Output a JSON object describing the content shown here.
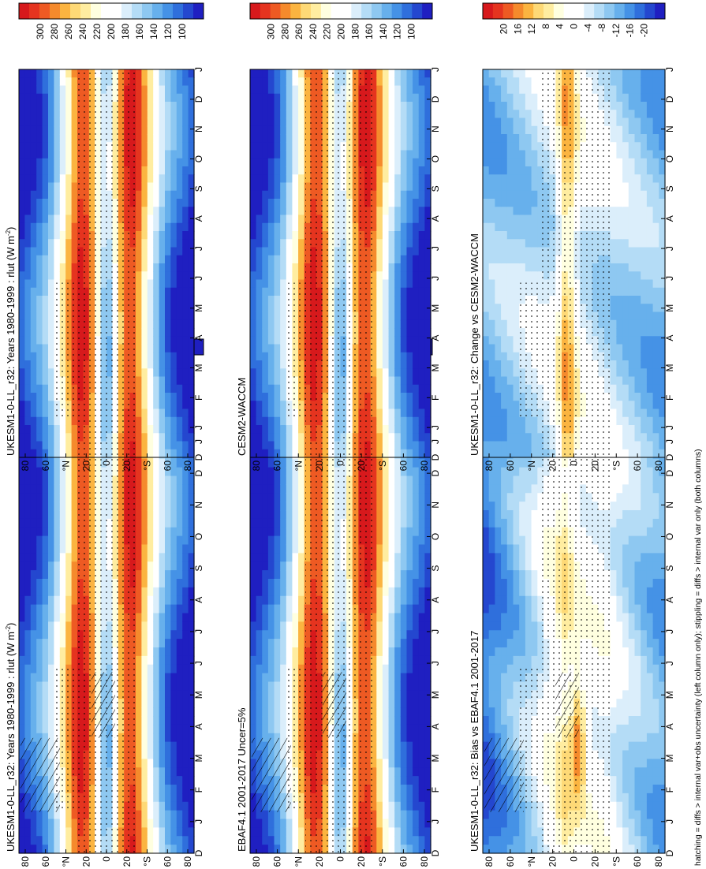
{
  "figure": {
    "footnote": "hatching = diffs > internal var+obs uncertainty (left column only); stippling = diffs > internal var only (both columns)"
  },
  "chart_data": [
    {
      "type": "heatmap",
      "id": "ukesm-left",
      "title": "UKESM1-0-LL_r32: Years 1980-1999 : rlut (W m",
      "title_sup": "-2",
      "title_end": ")",
      "x_ticks": [
        "D",
        "J",
        "F",
        "M",
        "A",
        "M",
        "J",
        "J",
        "A",
        "S",
        "O",
        "N",
        "D",
        "J"
      ],
      "y_ticks": [
        "80",
        "60",
        "°N",
        "20",
        "0",
        "20",
        "°S",
        "60",
        "80"
      ],
      "colorbar": {
        "levels": [
          "300",
          "280",
          "260",
          "240",
          "220",
          "200",
          "180",
          "160",
          "140",
          "120",
          "100"
        ],
        "colors": [
          "#d7191c",
          "#e5341f",
          "#ee5a23",
          "#f58a2c",
          "#fbb440",
          "#fed976",
          "#ffeda0",
          "#ffffe0",
          "#ffffff",
          "#ffffff",
          "#dbeefb",
          "#b4dcf6",
          "#8ec8f1",
          "#67b0ec",
          "#4592e6",
          "#2f6fdc",
          "#2447cf",
          "#1f1fc1"
        ]
      },
      "kind": "abs",
      "stipple": true,
      "hatch": true
    },
    {
      "type": "heatmap",
      "id": "ukesm-right",
      "title": "UKESM1-0-LL_r32: Years 1980-1999 : rlut (W m",
      "title_sup": "-2",
      "title_end": ")",
      "x_ticks": [
        "D",
        "J",
        "F",
        "M",
        "A",
        "M",
        "J",
        "J",
        "A",
        "S",
        "O",
        "N",
        "D",
        "J"
      ],
      "y_ticks": [
        "80",
        "60",
        "°N",
        "20",
        "0",
        "20",
        "°S",
        "60",
        "80"
      ],
      "colorbar": {
        "levels": [
          "300",
          "280",
          "260",
          "240",
          "220",
          "200",
          "180",
          "160",
          "140",
          "120",
          "100"
        ],
        "colors": [
          "#d7191c",
          "#e5341f",
          "#ee5a23",
          "#f58a2c",
          "#fbb440",
          "#fed976",
          "#ffeda0",
          "#ffffe0",
          "#ffffff",
          "#ffffff",
          "#dbeefb",
          "#b4dcf6",
          "#8ec8f1",
          "#67b0ec",
          "#4592e6",
          "#2f6fdc",
          "#2447cf",
          "#1f1fc1"
        ]
      },
      "kind": "abs",
      "stipple": true,
      "hatch": false
    },
    {
      "type": "heatmap",
      "id": "ebaf",
      "title": "EBAF4.1 2001-2017 Uncer=5%",
      "title_sup": "",
      "title_end": "",
      "x_ticks": [
        "D",
        "J",
        "F",
        "M",
        "A",
        "M",
        "J",
        "J",
        "A",
        "S",
        "O",
        "N",
        "D",
        "J"
      ],
      "y_ticks": [
        "80",
        "60",
        "°N",
        "20",
        "0",
        "20",
        "°S",
        "60",
        "80"
      ],
      "colorbar": {
        "levels": [
          "300",
          "280",
          "260",
          "240",
          "220",
          "200",
          "180",
          "160",
          "140",
          "120",
          "100"
        ],
        "colors": [
          "#d7191c",
          "#e5341f",
          "#ee5a23",
          "#f58a2c",
          "#fbb440",
          "#fed976",
          "#ffeda0",
          "#ffffe0",
          "#ffffff",
          "#ffffff",
          "#dbeefb",
          "#b4dcf6",
          "#8ec8f1",
          "#67b0ec",
          "#4592e6",
          "#2f6fdc",
          "#2447cf",
          "#1f1fc1"
        ]
      },
      "kind": "abs",
      "stipple": true,
      "hatch": true
    },
    {
      "type": "heatmap",
      "id": "cesm",
      "title": "CESM2-WACCM",
      "title_sup": "",
      "title_end": "",
      "x_ticks": [
        "D",
        "J",
        "F",
        "M",
        "A",
        "M",
        "J",
        "J",
        "A",
        "S",
        "O",
        "N",
        "D",
        "J"
      ],
      "y_ticks": [
        "80",
        "60",
        "°N",
        "20",
        "0",
        "20",
        "°S",
        "60",
        "80"
      ],
      "colorbar": {
        "levels": [
          "300",
          "280",
          "260",
          "240",
          "220",
          "200",
          "180",
          "160",
          "140",
          "120",
          "100"
        ],
        "colors": [
          "#d7191c",
          "#e5341f",
          "#ee5a23",
          "#f58a2c",
          "#fbb440",
          "#fed976",
          "#ffeda0",
          "#ffffe0",
          "#ffffff",
          "#ffffff",
          "#dbeefb",
          "#b4dcf6",
          "#8ec8f1",
          "#67b0ec",
          "#4592e6",
          "#2f6fdc",
          "#2447cf",
          "#1f1fc1"
        ]
      },
      "kind": "abs",
      "stipple": true,
      "hatch": false
    },
    {
      "type": "heatmap",
      "id": "bias",
      "title": "UKESM1-0-LL_r32: Bias vs EBAF4.1 2001-2017",
      "title_sup": "",
      "title_end": "",
      "x_ticks": [
        "D",
        "J",
        "F",
        "M",
        "A",
        "M",
        "J",
        "J",
        "A",
        "S",
        "O",
        "N",
        "D",
        "J"
      ],
      "y_ticks": [
        "80",
        "60",
        "°N",
        "20",
        "0",
        "20",
        "°S",
        "60",
        "80"
      ],
      "colorbar": {
        "levels": [
          "20",
          "16",
          "12",
          "8",
          "4",
          "0",
          "-4",
          "-8",
          "-12",
          "-16",
          "-20"
        ],
        "colors": [
          "#d7191c",
          "#e5341f",
          "#ee5a23",
          "#f58a2c",
          "#fbb440",
          "#fed976",
          "#ffeda0",
          "#ffffe0",
          "#ffffff",
          "#ffffff",
          "#dbeefb",
          "#b4dcf6",
          "#8ec8f1",
          "#67b0ec",
          "#4592e6",
          "#2f6fdc",
          "#2447cf",
          "#1f1fc1"
        ]
      },
      "kind": "diff",
      "stipple": true,
      "hatch": true
    },
    {
      "type": "heatmap",
      "id": "change",
      "title": "UKESM1-0-LL_r32: Change vs CESM2-WACCM",
      "title_sup": "",
      "title_end": "",
      "x_ticks": [
        "D",
        "J",
        "F",
        "M",
        "A",
        "M",
        "J",
        "J",
        "A",
        "S",
        "O",
        "N",
        "D",
        "J"
      ],
      "y_ticks": [
        "80",
        "60",
        "°N",
        "20",
        "0",
        "20",
        "°S",
        "60",
        "80"
      ],
      "colorbar": {
        "levels": [
          "20",
          "16",
          "12",
          "8",
          "4",
          "0",
          "-4",
          "-8",
          "-12",
          "-16",
          "-20"
        ],
        "colors": [
          "#d7191c",
          "#e5341f",
          "#ee5a23",
          "#f58a2c",
          "#fbb440",
          "#fed976",
          "#ffeda0",
          "#ffffe0",
          "#ffffff",
          "#ffffff",
          "#dbeefb",
          "#b4dcf6",
          "#8ec8f1",
          "#67b0ec",
          "#4592e6",
          "#2f6fdc",
          "#2447cf",
          "#1f1fc1"
        ]
      },
      "kind": "diff2",
      "stipple": true,
      "hatch": false
    }
  ]
}
